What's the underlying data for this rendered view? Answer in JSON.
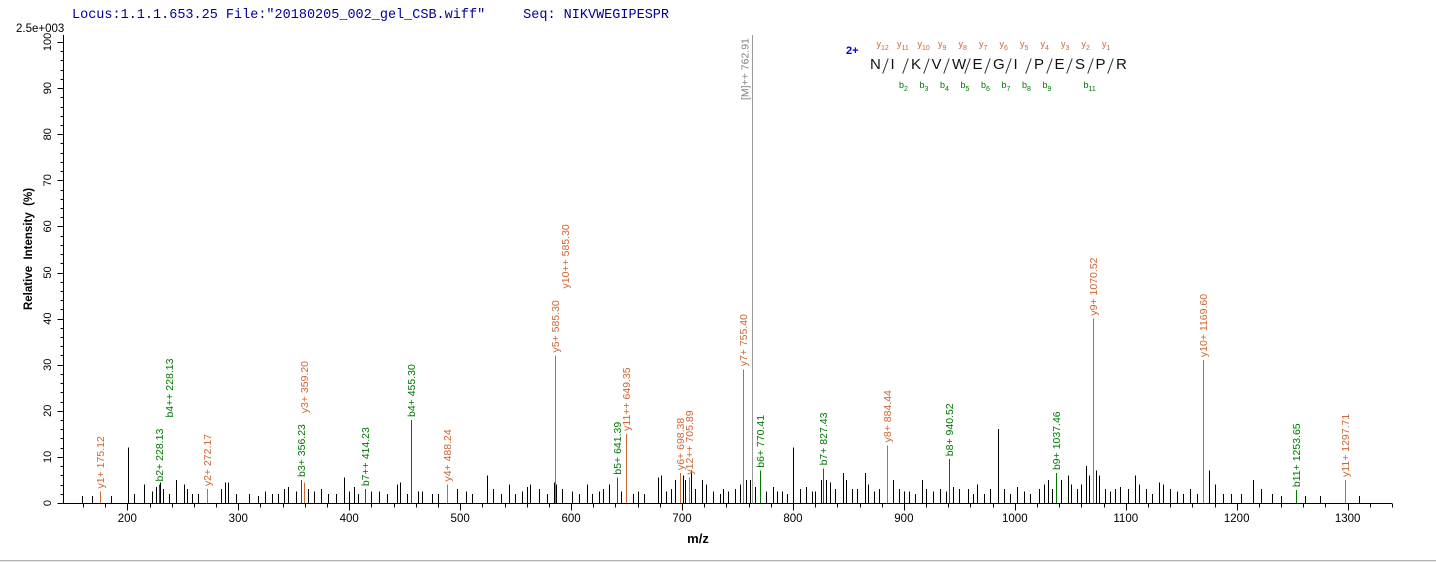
{
  "header": {
    "locus_file": "Locus:1.1.1.653.25 File:\"20180205_002_gel_CSB.wiff\"",
    "seq_full": "Seq: NIKVWEGIPESPR"
  },
  "sequence_diagram": {
    "charge_label": "2+",
    "residues": [
      "N",
      "I",
      "K",
      "V",
      "W",
      "E",
      "G",
      "I",
      "P",
      "E",
      "S",
      "P",
      "R"
    ],
    "y_ions": [
      "y12",
      "y11",
      "y10",
      "y9",
      "y8",
      "y7",
      "y6",
      "y5",
      "y4",
      "y3",
      "y2",
      "y1"
    ],
    "b_ions": [
      null,
      "b2",
      "b3",
      "b4",
      "b5",
      "b6",
      "b7",
      "b8",
      "b9",
      null,
      "b11",
      null
    ]
  },
  "colors": {
    "y_ion": "#cc6633",
    "b_ion": "#007700",
    "unmatched_peak": "#000000",
    "precursor": "#999999",
    "precursor_label": "#808080",
    "header_text": "#000099",
    "axis": "#000000"
  },
  "chart_data": {
    "type": "bar",
    "subtype": "ms2_fragment_ion_spectrum",
    "intensity_scale": "2.5e+003",
    "xlabel": "m/z",
    "ylabel": "Relative  Intensity  (%)",
    "x_range": [
      142,
      1340
    ],
    "y_range": [
      0,
      100
    ],
    "x_major_ticks": [
      200,
      300,
      400,
      500,
      600,
      700,
      800,
      900,
      1000,
      1100,
      1200,
      1300
    ],
    "x_minor_step": 20,
    "y_major_step": 10,
    "y_minor_step": 2,
    "grid": false,
    "precursor": {
      "label": "[M]++ 762.91",
      "mz": 762.91
    },
    "labeled_peaks": [
      {
        "mz": 175.12,
        "intensity": 2.5,
        "series": "y",
        "labels": [
          "y1+ 175.12"
        ]
      },
      {
        "mz": 228.13,
        "intensity": 4,
        "series": "b",
        "labels": [
          "b2+ 228.13",
          "b4++ 228.13"
        ]
      },
      {
        "mz": 272.17,
        "intensity": 3,
        "series": "y",
        "labels": [
          "y2+ 272.17"
        ]
      },
      {
        "mz": 356.23,
        "intensity": 5,
        "series": "b",
        "labels": [
          "b3+ 356.23"
        ]
      },
      {
        "mz": 359.2,
        "intensity": 4.5,
        "series": "y",
        "labels": [
          "y3+ 359.20"
        ],
        "dy": -66
      },
      {
        "mz": 414.23,
        "intensity": 3,
        "series": "b",
        "labels": [
          "b7++ 414.23"
        ]
      },
      {
        "mz": 455.3,
        "intensity": 18,
        "series": "b",
        "labels": [
          "b4+ 455.30"
        ]
      },
      {
        "mz": 488.24,
        "intensity": 4,
        "series": "y",
        "labels": [
          "y4+ 488.24"
        ]
      },
      {
        "mz": 585.3,
        "intensity": 32,
        "series": "y",
        "labels": [
          "y5+ 585.30",
          "y10++ 585.30"
        ]
      },
      {
        "mz": 641.39,
        "intensity": 5.5,
        "series": "b",
        "labels": [
          "b5+ 641.39"
        ]
      },
      {
        "mz": 649.35,
        "intensity": 15,
        "series": "y",
        "labels": [
          "y11++ 649.35"
        ]
      },
      {
        "mz": 698.38,
        "intensity": 6.5,
        "series": "y",
        "labels": [
          "y6+ 698.38"
        ]
      },
      {
        "mz": 705.89,
        "intensity": 5.5,
        "series": "y",
        "labels": [
          "y12++ 705.89"
        ]
      },
      {
        "mz": 755.4,
        "intensity": 29,
        "series": "y",
        "labels": [
          "y7+ 755.40"
        ]
      },
      {
        "mz": 770.41,
        "intensity": 7,
        "series": "b",
        "labels": [
          "b6+ 770.41"
        ]
      },
      {
        "mz": 827.43,
        "intensity": 7.5,
        "series": "b",
        "labels": [
          "b7+ 827.43"
        ]
      },
      {
        "mz": 884.44,
        "intensity": 12.5,
        "series": "y",
        "labels": [
          "y8+ 884.44"
        ]
      },
      {
        "mz": 940.52,
        "intensity": 9.5,
        "series": "b",
        "labels": [
          "b8+ 940.52"
        ]
      },
      {
        "mz": 1037.46,
        "intensity": 6.5,
        "series": "b",
        "labels": [
          "b9+ 1037.46"
        ]
      },
      {
        "mz": 1070.52,
        "intensity": 40,
        "series": "y",
        "labels": [
          "y9+ 1070.52"
        ]
      },
      {
        "mz": 1169.6,
        "intensity": 31,
        "series": "y",
        "labels": [
          "y10+ 1169.60"
        ]
      },
      {
        "mz": 1253.65,
        "intensity": 2.8,
        "series": "b",
        "labels": [
          "b11+ 1253.65"
        ]
      },
      {
        "mz": 1297.71,
        "intensity": 5,
        "series": "y",
        "labels": [
          "y11+ 1297.71"
        ]
      }
    ],
    "unlabeled_peaks": [
      [
        159,
        1.5
      ],
      [
        168,
        1.5
      ],
      [
        185,
        1.5
      ],
      [
        200.4,
        12
      ],
      [
        206,
        2
      ],
      [
        215,
        4
      ],
      [
        222,
        2.5
      ],
      [
        226,
        3.5
      ],
      [
        229.5,
        4.5
      ],
      [
        232.5,
        3
      ],
      [
        238,
        2
      ],
      [
        244,
        5
      ],
      [
        251,
        4
      ],
      [
        254,
        3
      ],
      [
        258,
        2
      ],
      [
        264,
        2
      ],
      [
        284,
        3
      ],
      [
        288,
        4.5
      ],
      [
        291,
        4.5
      ],
      [
        298,
        2
      ],
      [
        310,
        2
      ],
      [
        318,
        1.5
      ],
      [
        324,
        2.5
      ],
      [
        330,
        2
      ],
      [
        336,
        2
      ],
      [
        341,
        3
      ],
      [
        345,
        3.5
      ],
      [
        352,
        2.5
      ],
      [
        363,
        3
      ],
      [
        368,
        2.5
      ],
      [
        375,
        3
      ],
      [
        381,
        2
      ],
      [
        388,
        2
      ],
      [
        395,
        5.5
      ],
      [
        400,
        2.5
      ],
      [
        404,
        3.5
      ],
      [
        408,
        2
      ],
      [
        420,
        2.5
      ],
      [
        427,
        2.5
      ],
      [
        434,
        2
      ],
      [
        443,
        4
      ],
      [
        446,
        4.5
      ],
      [
        452,
        2
      ],
      [
        462,
        2.5
      ],
      [
        466,
        2.5
      ],
      [
        475,
        2
      ],
      [
        480,
        2
      ],
      [
        497,
        3
      ],
      [
        505,
        2.5
      ],
      [
        511,
        2
      ],
      [
        524,
        6
      ],
      [
        530,
        3
      ],
      [
        537,
        2
      ],
      [
        544,
        4
      ],
      [
        549,
        2
      ],
      [
        556,
        2.5
      ],
      [
        560,
        3.5
      ],
      [
        563,
        4
      ],
      [
        571,
        3
      ],
      [
        578,
        2
      ],
      [
        584.2,
        4.5
      ],
      [
        586.8,
        4
      ],
      [
        592,
        3
      ],
      [
        601,
        2.5
      ],
      [
        607,
        2
      ],
      [
        614,
        4
      ],
      [
        619,
        2
      ],
      [
        625,
        2.5
      ],
      [
        629,
        3
      ],
      [
        634,
        4
      ],
      [
        645,
        2.5
      ],
      [
        656,
        2
      ],
      [
        660,
        2.5
      ],
      [
        666,
        2
      ],
      [
        678,
        5.5
      ],
      [
        681,
        6
      ],
      [
        686,
        2.5
      ],
      [
        690,
        3
      ],
      [
        694,
        5
      ],
      [
        700.5,
        6
      ],
      [
        703,
        5
      ],
      [
        708.5,
        7
      ],
      [
        712,
        3
      ],
      [
        718,
        5
      ],
      [
        722,
        4
      ],
      [
        728,
        2.5
      ],
      [
        734,
        2
      ],
      [
        737,
        3
      ],
      [
        741,
        2.5
      ],
      [
        748,
        3
      ],
      [
        752,
        4
      ],
      [
        757.5,
        5
      ],
      [
        761,
        5
      ],
      [
        765.5,
        3.5
      ],
      [
        776,
        2.5
      ],
      [
        782,
        3.5
      ],
      [
        786,
        2.5
      ],
      [
        790,
        2.5
      ],
      [
        795,
        2
      ],
      [
        800,
        12
      ],
      [
        806,
        3
      ],
      [
        812,
        3.5
      ],
      [
        817,
        2.5
      ],
      [
        820,
        2.5
      ],
      [
        825,
        5
      ],
      [
        830,
        5
      ],
      [
        833,
        4.5
      ],
      [
        838,
        3
      ],
      [
        845,
        6.5
      ],
      [
        848,
        5
      ],
      [
        853,
        3
      ],
      [
        858,
        3
      ],
      [
        865,
        6.5
      ],
      [
        868,
        4
      ],
      [
        873,
        2.5
      ],
      [
        878,
        3
      ],
      [
        890,
        5
      ],
      [
        896,
        3
      ],
      [
        900,
        2.5
      ],
      [
        905,
        2.5
      ],
      [
        910,
        2
      ],
      [
        916,
        5
      ],
      [
        920,
        3
      ],
      [
        926,
        2.5
      ],
      [
        933,
        3
      ],
      [
        938,
        2.5
      ],
      [
        944,
        3.5
      ],
      [
        950,
        3
      ],
      [
        958,
        3
      ],
      [
        962,
        2
      ],
      [
        966,
        4
      ],
      [
        972,
        2
      ],
      [
        978,
        3
      ],
      [
        985,
        16
      ],
      [
        990,
        3
      ],
      [
        996,
        2
      ],
      [
        1002,
        3.5
      ],
      [
        1008,
        2.5
      ],
      [
        1014,
        2
      ],
      [
        1022,
        3
      ],
      [
        1026,
        4
      ],
      [
        1030,
        5
      ],
      [
        1033.5,
        3
      ],
      [
        1042,
        5
      ],
      [
        1048,
        6
      ],
      [
        1051,
        4
      ],
      [
        1056,
        3
      ],
      [
        1060,
        4
      ],
      [
        1064,
        8
      ],
      [
        1067,
        6
      ],
      [
        1073,
        7
      ],
      [
        1076,
        6
      ],
      [
        1081,
        3
      ],
      [
        1086,
        2.5
      ],
      [
        1090,
        3
      ],
      [
        1095,
        3.5
      ],
      [
        1102,
        3
      ],
      [
        1108,
        6
      ],
      [
        1112,
        4
      ],
      [
        1118,
        3
      ],
      [
        1124,
        2
      ],
      [
        1130,
        4.5
      ],
      [
        1134,
        4
      ],
      [
        1140,
        3
      ],
      [
        1146,
        2.5
      ],
      [
        1152,
        2
      ],
      [
        1158,
        3
      ],
      [
        1164,
        2
      ],
      [
        1175,
        7
      ],
      [
        1180,
        4
      ],
      [
        1188,
        2
      ],
      [
        1195,
        2
      ],
      [
        1204,
        2
      ],
      [
        1215,
        5
      ],
      [
        1222,
        3
      ],
      [
        1232,
        2
      ],
      [
        1240,
        1.5
      ],
      [
        1262,
        1.5
      ],
      [
        1275,
        1.5
      ],
      [
        1310,
        1.5
      ]
    ]
  }
}
